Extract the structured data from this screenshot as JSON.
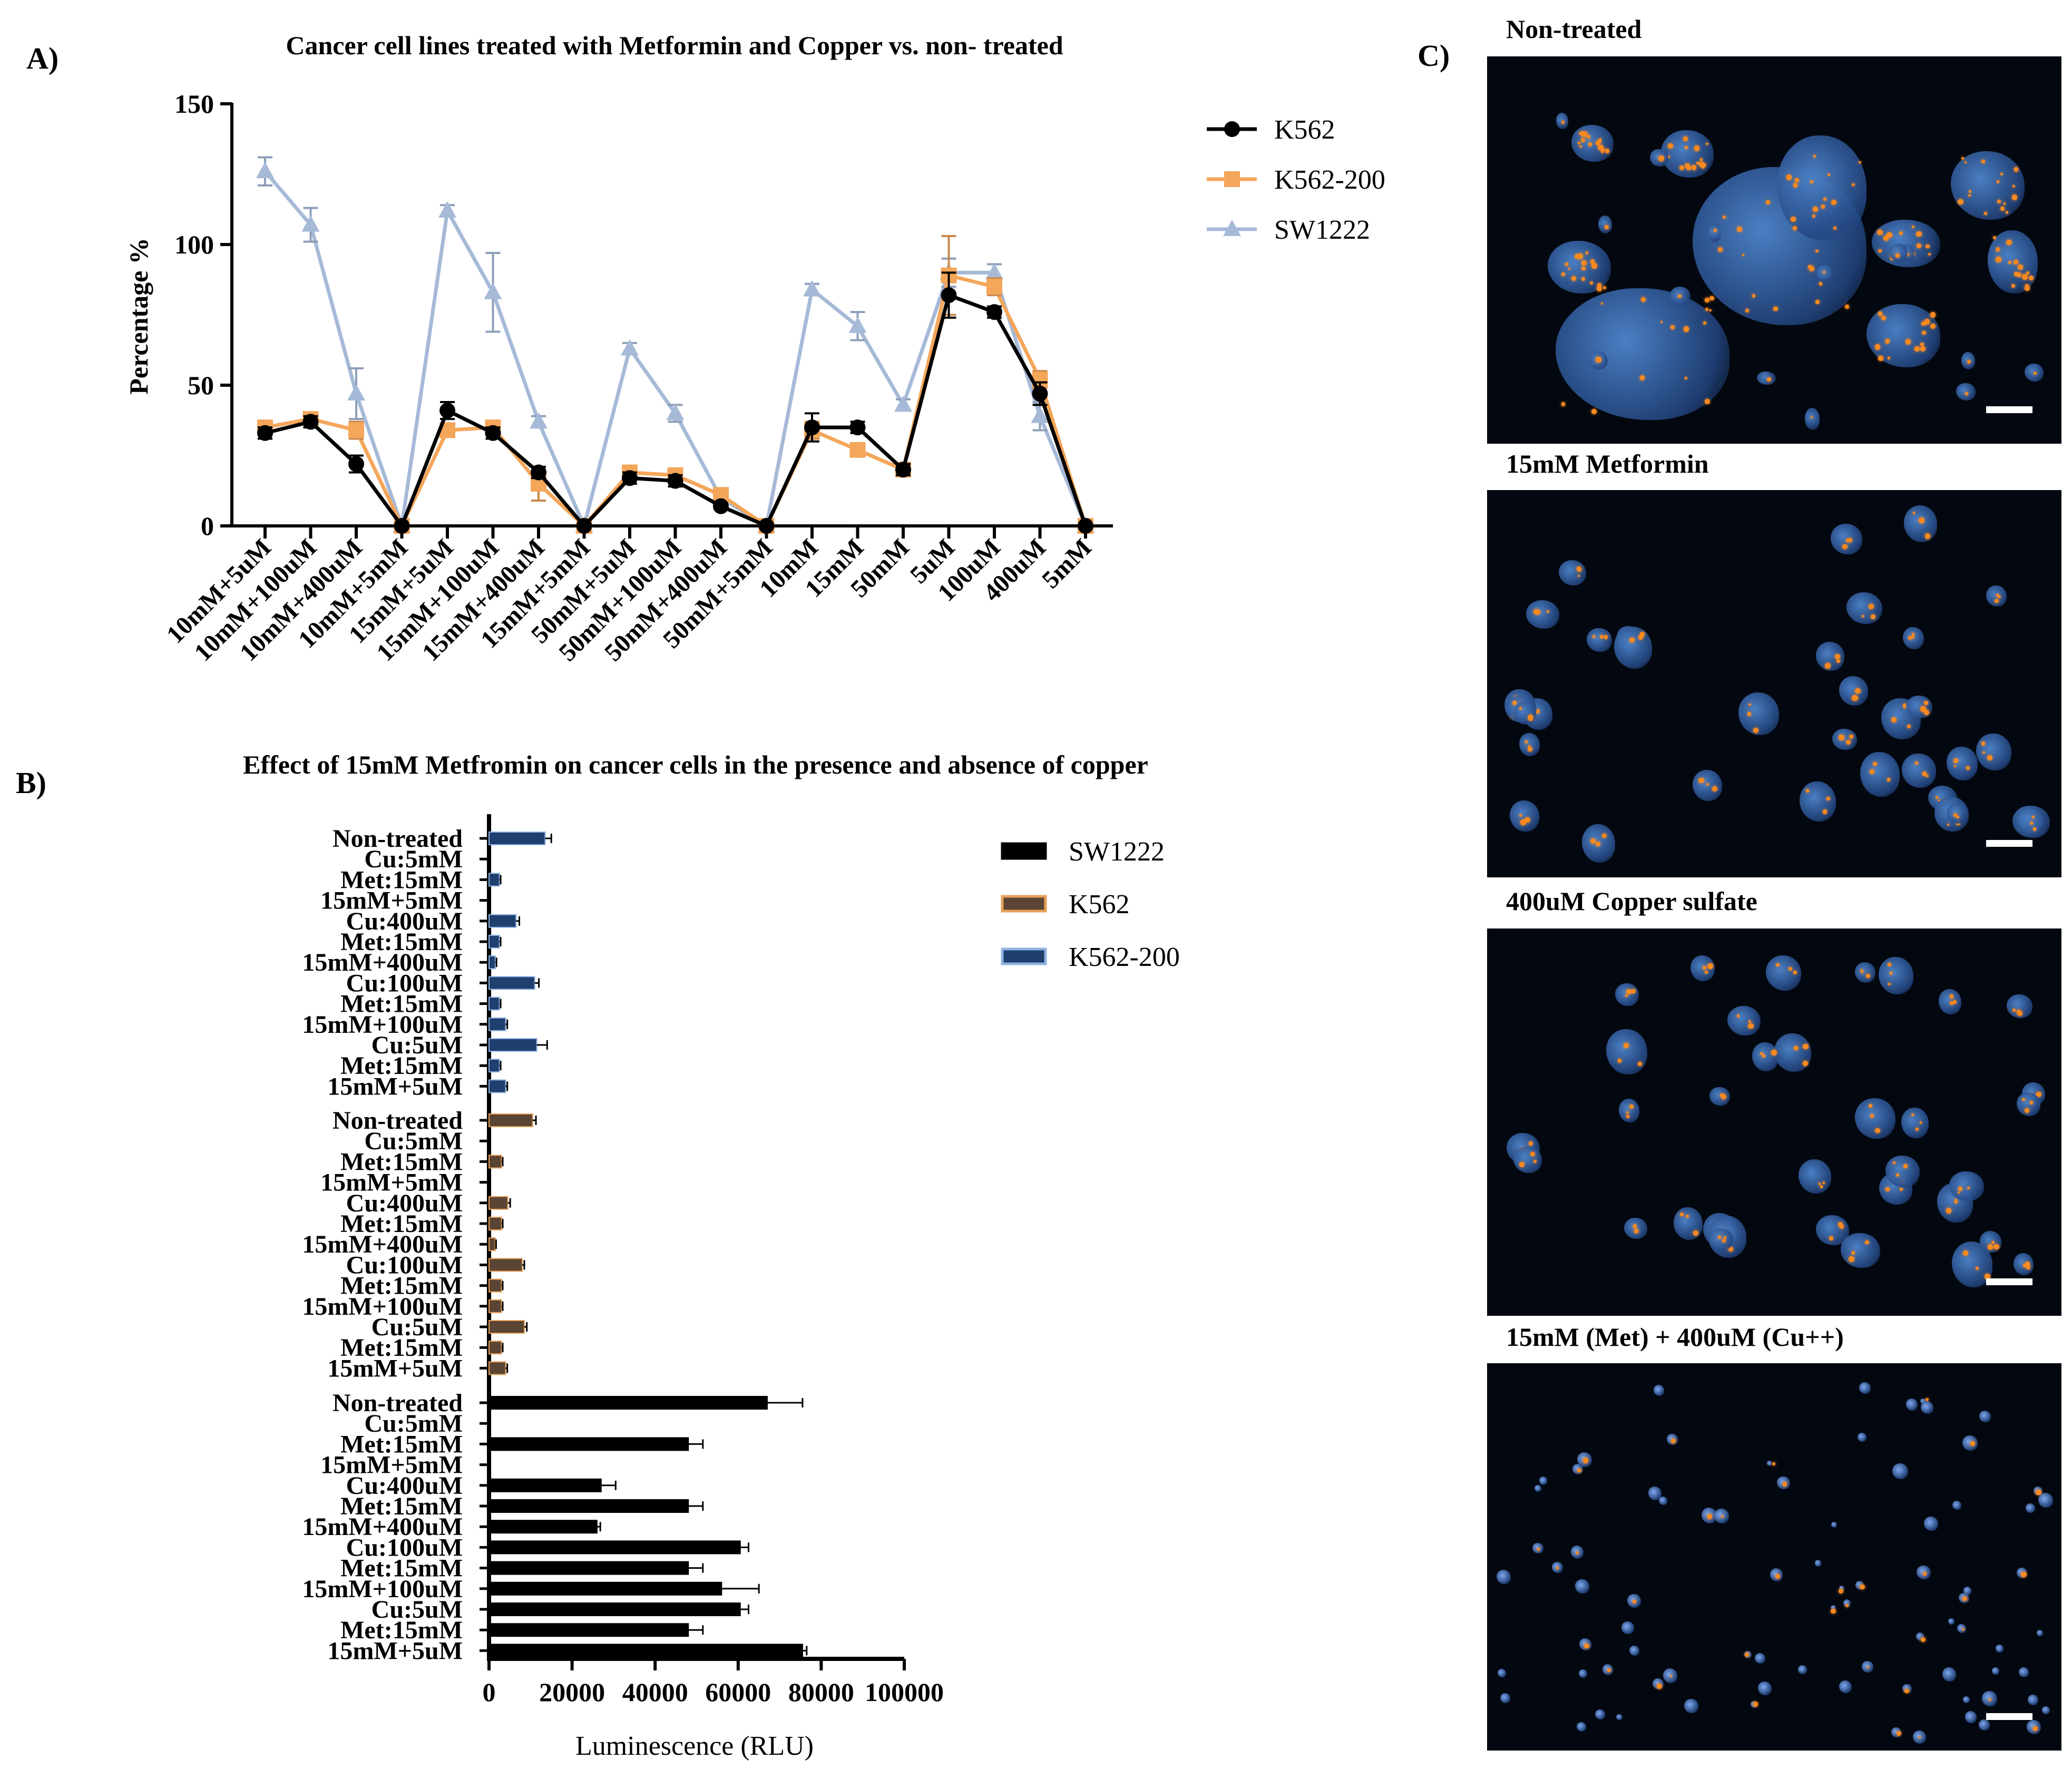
{
  "panel_labels": {
    "a": "A)",
    "b": "B)",
    "c": "C)"
  },
  "colors": {
    "K562_line": "#000000",
    "K562_200_line": "#f4a65a",
    "SW1222_line": "#a6bad7",
    "bar_SW1222": "#000000",
    "bar_K562": "#5a4535",
    "bar_K562_edge": "#e8a057",
    "bar_K562_200": "#1f3f6e",
    "bar_K562_200_edge": "#8fb3e0",
    "micro_bg": "#030810",
    "cell_blue": "#3f6fb5",
    "cell_orange": "#ff8a1e",
    "scale_bar": "#ffffff"
  },
  "chart_data": [
    {
      "type": "line",
      "title": "Cancer cell lines treated with Metformin and Copper vs. non- treated",
      "xlabel": "",
      "ylabel": "Percentage %",
      "ylim": [
        0,
        150
      ],
      "yticks": [
        "0",
        "50",
        "100",
        "150"
      ],
      "legend_position": "right",
      "categories": [
        "10mM+5uM",
        "10mM+100uM",
        "10mM+400uM",
        "10mM+5mM",
        "15mM+5uM",
        "15mM+100uM",
        "15mM+400uM",
        "15mM+5mM",
        "50mM+5uM",
        "50mM+100uM",
        "50mM+400uM",
        "50mM+5mM",
        "10mM",
        "15mM",
        "50mM",
        "5uM",
        "100uM",
        "400uM",
        "5mM"
      ],
      "series": [
        {
          "name": "K562",
          "marker": "circle",
          "color": "#000000",
          "values": [
            33,
            37,
            22,
            0,
            41,
            33,
            19,
            0,
            17,
            16,
            7,
            0,
            35,
            35,
            20,
            82,
            76,
            47,
            0
          ],
          "errors": [
            2,
            2,
            3,
            0,
            3,
            2,
            2,
            0,
            2,
            2,
            1,
            0,
            5,
            2,
            2,
            8,
            2,
            4,
            0
          ]
        },
        {
          "name": "K562-200",
          "marker": "square",
          "color": "#f4a65a",
          "values": [
            35,
            38,
            34,
            0,
            34,
            35,
            15,
            0,
            19,
            18,
            11,
            0,
            34,
            27,
            20,
            89,
            85,
            52,
            0
          ],
          "errors": [
            2,
            2,
            3,
            0,
            2,
            2,
            6,
            0,
            1,
            1,
            1,
            0,
            3,
            2,
            1,
            14,
            3,
            3,
            0
          ]
        },
        {
          "name": "SW1222",
          "marker": "triangle",
          "color": "#a6bad7",
          "values": [
            126,
            107,
            47,
            0,
            112,
            83,
            37,
            0,
            63,
            40,
            10,
            0,
            84,
            71,
            43,
            90,
            90,
            39,
            0
          ],
          "errors": [
            5,
            6,
            9,
            0,
            2,
            14,
            2,
            0,
            2,
            3,
            1,
            0,
            2,
            5,
            2,
            5,
            3,
            5,
            0
          ]
        }
      ]
    },
    {
      "type": "bar",
      "orientation": "horizontal",
      "title": "Effect of 15mM Metfromin on cancer cells in the presence and absence of copper",
      "xlabel": "Luminescence (RLU)",
      "ylabel": "",
      "xlim": [
        0,
        100000
      ],
      "xticks": [
        "0",
        "20000",
        "40000",
        "60000",
        "80000",
        "100000"
      ],
      "legend_position": "right",
      "legend": [
        "SW1222",
        "K562",
        "K562-200"
      ],
      "categories": [
        "Non-treated",
        "Cu:5mM",
        "Met:15mM",
        "15mM+5mM",
        "Cu:400uM",
        "Met:15mM",
        "15mM+400uM",
        "Cu:100uM",
        "Met:15mM",
        "15mM+100uM",
        "Cu:5uM",
        "Met:15mM",
        "15mM+5uM"
      ],
      "groups": [
        {
          "name": "K562-200",
          "values": [
            13500,
            0,
            2500,
            0,
            6500,
            2500,
            1500,
            11000,
            2500,
            4000,
            11500,
            2500,
            4000
          ],
          "errors": [
            1500,
            0,
            300,
            0,
            800,
            300,
            300,
            1000,
            300,
            400,
            2500,
            300,
            400
          ]
        },
        {
          "name": "K562",
          "values": [
            10500,
            0,
            3000,
            0,
            4500,
            3000,
            1500,
            8000,
            3000,
            3000,
            8500,
            3000,
            4000
          ],
          "errors": [
            800,
            0,
            300,
            0,
            600,
            300,
            200,
            500,
            300,
            300,
            600,
            300,
            400
          ]
        },
        {
          "name": "SW1222",
          "values": [
            67000,
            0,
            48000,
            0,
            27000,
            48000,
            26000,
            60500,
            48000,
            56000,
            60500,
            48000,
            75500
          ],
          "errors": [
            8500,
            0,
            3500,
            0,
            3500,
            3500,
            800,
            2000,
            3500,
            9000,
            2000,
            3500,
            1000
          ]
        }
      ]
    }
  ],
  "micrographs": [
    {
      "title": "Non-treated",
      "density": "clusters"
    },
    {
      "title": "15mM Metformin",
      "density": "sparse"
    },
    {
      "title": "400uM Copper sulfate",
      "density": "sparse"
    },
    {
      "title": "15mM (Met) + 400uM (Cu++)",
      "density": "tiny"
    }
  ]
}
